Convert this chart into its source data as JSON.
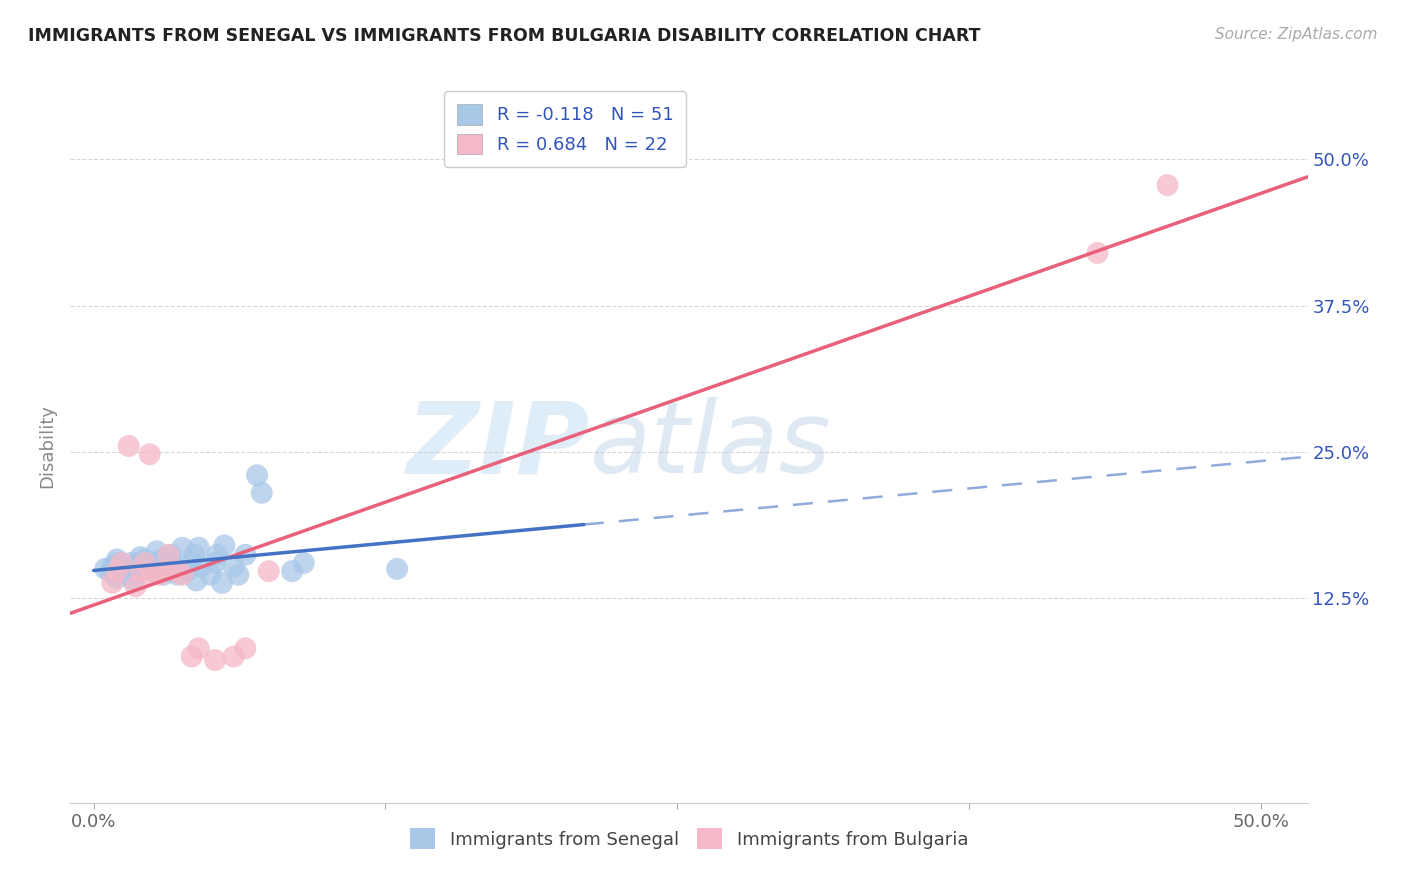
{
  "title": "IMMIGRANTS FROM SENEGAL VS IMMIGRANTS FROM BULGARIA DISABILITY CORRELATION CHART",
  "source": "Source: ZipAtlas.com",
  "ylabel": "Disability",
  "xlim": [
    -0.01,
    0.52
  ],
  "ylim": [
    -0.05,
    0.56
  ],
  "ytick_positions": [
    0.125,
    0.25,
    0.375,
    0.5
  ],
  "ytick_labels": [
    "12.5%",
    "25.0%",
    "37.5%",
    "50.0%"
  ],
  "xtick_positions": [
    0.0,
    0.125,
    0.25,
    0.375,
    0.5
  ],
  "xticklabels": [
    "0.0%",
    "",
    "",
    "",
    "50.0%"
  ],
  "series1_label": "Immigrants from Senegal",
  "series1_R": -0.118,
  "series1_N": 51,
  "series1_color": "#a8c8e8",
  "series1_line_color": "#4472c4",
  "series2_label": "Immigrants from Bulgaria",
  "series2_R": 0.684,
  "series2_N": 22,
  "series2_color": "#f4b8c8",
  "series2_line_color": "#e8607a",
  "legend_text_color": "#3355bb",
  "watermark_zip": "ZIP",
  "watermark_atlas": "atlas",
  "background_color": "#ffffff",
  "grid_color": "#cccccc",
  "senegal_x": [
    0.005,
    0.007,
    0.008,
    0.009,
    0.01,
    0.01,
    0.01,
    0.01,
    0.012,
    0.015,
    0.016,
    0.017,
    0.018,
    0.018,
    0.019,
    0.02,
    0.02,
    0.021,
    0.022,
    0.024,
    0.025,
    0.026,
    0.027,
    0.028,
    0.029,
    0.03,
    0.032,
    0.033,
    0.034,
    0.035,
    0.036,
    0.038,
    0.04,
    0.042,
    0.043,
    0.044,
    0.045,
    0.046,
    0.05,
    0.052,
    0.053,
    0.055,
    0.056,
    0.06,
    0.062,
    0.065,
    0.07,
    0.072,
    0.085,
    0.09,
    0.13
  ],
  "senegal_y": [
    0.15,
    0.148,
    0.152,
    0.145,
    0.155,
    0.148,
    0.142,
    0.158,
    0.15,
    0.148,
    0.155,
    0.14,
    0.152,
    0.145,
    0.155,
    0.148,
    0.16,
    0.155,
    0.158,
    0.152,
    0.148,
    0.155,
    0.165,
    0.15,
    0.158,
    0.145,
    0.155,
    0.162,
    0.148,
    0.152,
    0.145,
    0.168,
    0.148,
    0.155,
    0.162,
    0.14,
    0.168,
    0.152,
    0.145,
    0.155,
    0.162,
    0.138,
    0.17,
    0.152,
    0.145,
    0.162,
    0.23,
    0.215,
    0.148,
    0.155,
    0.15
  ],
  "bulgaria_x": [
    0.008,
    0.01,
    0.012,
    0.015,
    0.018,
    0.02,
    0.022,
    0.024,
    0.025,
    0.028,
    0.03,
    0.032,
    0.035,
    0.038,
    0.042,
    0.045,
    0.052,
    0.06,
    0.065,
    0.075,
    0.43,
    0.46
  ],
  "bulgaria_y": [
    0.138,
    0.148,
    0.155,
    0.255,
    0.135,
    0.148,
    0.155,
    0.248,
    0.145,
    0.145,
    0.148,
    0.162,
    0.148,
    0.145,
    0.075,
    0.082,
    0.072,
    0.075,
    0.082,
    0.148,
    0.42,
    0.478
  ]
}
